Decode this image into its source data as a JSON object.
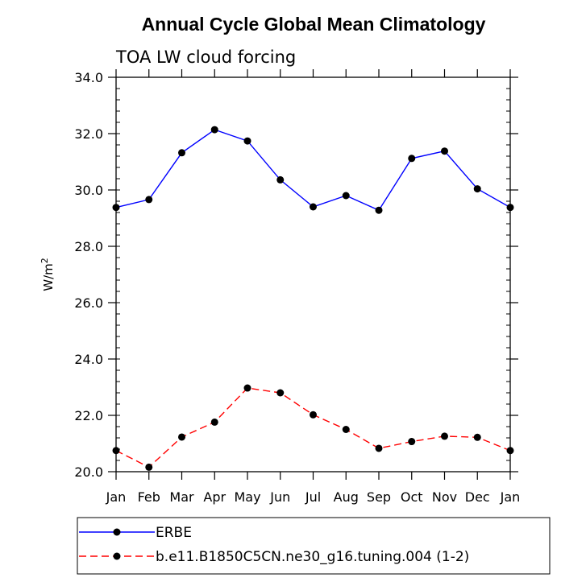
{
  "chart_data": {
    "type": "line",
    "title": "Annual Cycle Global Mean Climatology",
    "subtitle": "TOA LW cloud forcing",
    "ylabel": "W/m",
    "ylabel_superscript": "2",
    "xlabel": "",
    "categories": [
      "Jan",
      "Feb",
      "Mar",
      "Apr",
      "May",
      "Jun",
      "Jul",
      "Aug",
      "Sep",
      "Oct",
      "Nov",
      "Dec",
      "Jan"
    ],
    "ylim": [
      20.0,
      34.0
    ],
    "yticks": [
      "20.0",
      "22.0",
      "24.0",
      "26.0",
      "28.0",
      "30.0",
      "32.0",
      "34.0"
    ],
    "series": [
      {
        "name": "ERBE",
        "color": "#0000ff",
        "dash": "solid",
        "values": [
          29.38,
          29.66,
          31.32,
          32.14,
          31.74,
          30.36,
          29.4,
          29.8,
          29.28,
          31.12,
          31.38,
          30.04,
          29.38
        ]
      },
      {
        "name": "b.e11.B1850C5CN.ne30_g16.tuning.004 (1-2)",
        "color": "#ff0000",
        "dash": "dashed",
        "values": [
          20.75,
          20.16,
          21.23,
          21.76,
          22.97,
          22.8,
          22.02,
          21.5,
          20.83,
          21.07,
          21.26,
          21.22,
          20.75
        ]
      }
    ]
  }
}
